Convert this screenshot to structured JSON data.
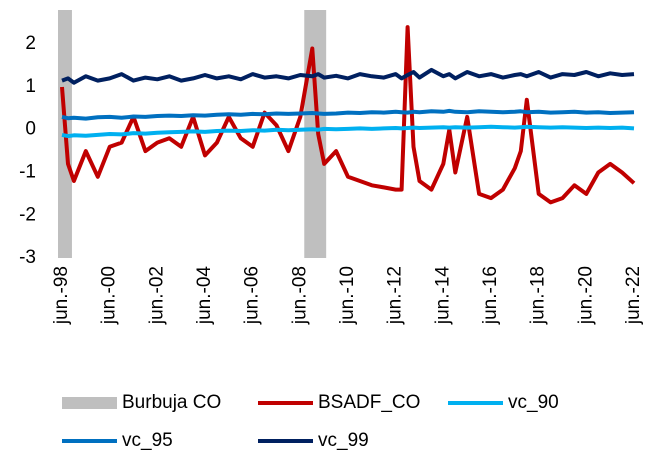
{
  "chart_data": {
    "type": "line",
    "x": [
      "1998-06",
      "1998-09",
      "1998-12",
      "1999-06",
      "1999-12",
      "2000-06",
      "2000-12",
      "2001-06",
      "2001-12",
      "2002-06",
      "2002-12",
      "2003-06",
      "2003-12",
      "2004-06",
      "2004-12",
      "2005-06",
      "2005-12",
      "2006-06",
      "2006-12",
      "2007-06",
      "2007-12",
      "2008-06",
      "2008-12",
      "2009-03",
      "2009-06",
      "2009-12",
      "2010-06",
      "2010-12",
      "2011-06",
      "2011-12",
      "2012-06",
      "2012-09",
      "2012-12",
      "2013-03",
      "2013-06",
      "2013-12",
      "2014-06",
      "2014-09",
      "2014-12",
      "2015-06",
      "2015-12",
      "2016-06",
      "2016-12",
      "2017-06",
      "2017-09",
      "2017-12",
      "2018-06",
      "2018-12",
      "2019-06",
      "2019-12",
      "2020-06",
      "2020-12",
      "2021-06",
      "2021-12",
      "2022-06"
    ],
    "bubbles": {
      "name": "Burbuja CO",
      "color": "#bfbfbf",
      "periods": [
        [
          "1998-06",
          "1998-09"
        ],
        [
          "2008-10",
          "2009-05"
        ]
      ]
    },
    "series": [
      {
        "name": "BSADF_CO",
        "color": "#c00000",
        "values": [
          1.0,
          -0.8,
          -1.2,
          -0.5,
          -1.1,
          -0.4,
          -0.3,
          0.3,
          -0.5,
          -0.3,
          -0.2,
          -0.4,
          0.3,
          -0.6,
          -0.3,
          0.3,
          -0.2,
          -0.4,
          0.4,
          0.1,
          -0.5,
          0.3,
          1.9,
          -0.1,
          -0.8,
          -0.5,
          -1.1,
          -1.2,
          -1.3,
          -1.35,
          -1.4,
          -1.4,
          2.4,
          -0.4,
          -1.2,
          -1.4,
          -0.8,
          0.0,
          -1.0,
          0.3,
          -1.5,
          -1.6,
          -1.4,
          -0.9,
          -0.5,
          0.7,
          -1.5,
          -1.7,
          -1.6,
          -1.3,
          -1.5,
          -1.0,
          -0.8,
          -1.0,
          -1.25
        ]
      },
      {
        "name": "vc_90",
        "color": "#00b0f0",
        "values": [
          -0.12,
          -0.15,
          -0.13,
          -0.14,
          -0.12,
          -0.1,
          -0.11,
          -0.08,
          -0.09,
          -0.07,
          -0.06,
          -0.05,
          -0.04,
          -0.05,
          -0.03,
          -0.02,
          -0.03,
          -0.01,
          -0.02,
          0.0,
          -0.01,
          0.0,
          0.01,
          0.0,
          0.02,
          0.01,
          0.02,
          0.03,
          0.02,
          0.03,
          0.04,
          0.03,
          0.04,
          0.05,
          0.04,
          0.05,
          0.06,
          0.05,
          0.06,
          0.05,
          0.06,
          0.07,
          0.06,
          0.05,
          0.06,
          0.07,
          0.06,
          0.05,
          0.06,
          0.05,
          0.04,
          0.05,
          0.04,
          0.05,
          0.03
        ]
      },
      {
        "name": "vc_95",
        "color": "#0070c0",
        "values": [
          0.3,
          0.27,
          0.28,
          0.26,
          0.29,
          0.3,
          0.28,
          0.31,
          0.3,
          0.32,
          0.33,
          0.32,
          0.34,
          0.33,
          0.35,
          0.36,
          0.35,
          0.37,
          0.36,
          0.38,
          0.37,
          0.38,
          0.39,
          0.38,
          0.37,
          0.38,
          0.4,
          0.39,
          0.41,
          0.4,
          0.42,
          0.41,
          0.4,
          0.42,
          0.41,
          0.43,
          0.42,
          0.44,
          0.42,
          0.41,
          0.43,
          0.42,
          0.41,
          0.42,
          0.43,
          0.41,
          0.42,
          0.4,
          0.41,
          0.42,
          0.4,
          0.41,
          0.39,
          0.4,
          0.41
        ]
      },
      {
        "name": "vc_99",
        "color": "#002060",
        "values": [
          1.15,
          1.2,
          1.1,
          1.25,
          1.15,
          1.2,
          1.3,
          1.15,
          1.22,
          1.18,
          1.25,
          1.15,
          1.2,
          1.28,
          1.2,
          1.25,
          1.18,
          1.3,
          1.22,
          1.25,
          1.2,
          1.28,
          1.25,
          1.3,
          1.22,
          1.26,
          1.2,
          1.3,
          1.25,
          1.22,
          1.3,
          1.2,
          1.28,
          1.35,
          1.22,
          1.4,
          1.25,
          1.3,
          1.2,
          1.35,
          1.25,
          1.3,
          1.22,
          1.28,
          1.3,
          1.25,
          1.35,
          1.22,
          1.3,
          1.28,
          1.35,
          1.25,
          1.32,
          1.28,
          1.3
        ]
      }
    ],
    "xlim": [
      "1998-06",
      "2022-06"
    ],
    "xticks": [
      {
        "value": "1998-06",
        "label": "jun.-98"
      },
      {
        "value": "2000-06",
        "label": "jun.-00"
      },
      {
        "value": "2002-06",
        "label": "jun.-02"
      },
      {
        "value": "2004-06",
        "label": "jun.-04"
      },
      {
        "value": "2006-06",
        "label": "jun.-06"
      },
      {
        "value": "2008-06",
        "label": "jun.-08"
      },
      {
        "value": "2010-06",
        "label": "jun.-10"
      },
      {
        "value": "2012-06",
        "label": "jun.-12"
      },
      {
        "value": "2014-06",
        "label": "jun.-14"
      },
      {
        "value": "2016-06",
        "label": "jun.-16"
      },
      {
        "value": "2018-06",
        "label": "jun.-18"
      },
      {
        "value": "2020-06",
        "label": "jun.-20"
      },
      {
        "value": "2022-06",
        "label": "jun.-22"
      }
    ],
    "ylim": [
      -3,
      2.8
    ],
    "yticks": [
      -3,
      -2,
      -1,
      0,
      1,
      2
    ],
    "grid": false
  }
}
